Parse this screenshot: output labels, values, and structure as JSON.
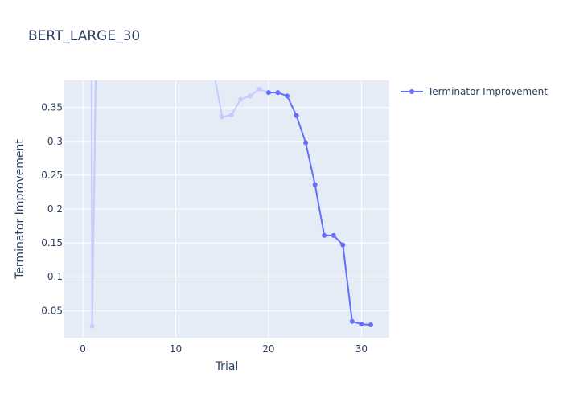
{
  "chart_data": {
    "type": "line",
    "title": "BERT_LARGE_30",
    "xlabel": "Trial",
    "ylabel": "Terminator Improvement",
    "xlim": [
      -2,
      33
    ],
    "ylim": [
      0.01,
      0.39
    ],
    "x_ticks": [
      0,
      10,
      20,
      30
    ],
    "y_ticks": [
      0.05,
      0.1,
      0.15,
      0.2,
      0.25,
      0.3,
      0.35
    ],
    "x_tick_labels": [
      "0",
      "10",
      "20",
      "30"
    ],
    "y_tick_labels": [
      "0.05",
      "0.1",
      "0.15",
      "0.2",
      "0.25",
      "0.3",
      "0.35"
    ],
    "grid": true,
    "legend_position": "top-right",
    "series": [
      {
        "name": "Terminator Improvement",
        "color": "#636efa",
        "faded_color": "#c7cafd",
        "points_faded": [
          {
            "x": 0.9,
            "y": 0.6
          },
          {
            "x": 1,
            "y": 0.027
          },
          {
            "x": 1.6,
            "y": 0.6
          },
          {
            "x": 14,
            "y": 0.41
          },
          {
            "x": 15,
            "y": 0.336
          },
          {
            "x": 16,
            "y": 0.339
          },
          {
            "x": 17,
            "y": 0.362
          },
          {
            "x": 18,
            "y": 0.367
          },
          {
            "x": 19,
            "y": 0.377
          },
          {
            "x": 20,
            "y": 0.372
          }
        ],
        "points": [
          {
            "x": 20,
            "y": 0.372
          },
          {
            "x": 21,
            "y": 0.372
          },
          {
            "x": 22,
            "y": 0.367
          },
          {
            "x": 23,
            "y": 0.338
          },
          {
            "x": 24,
            "y": 0.298
          },
          {
            "x": 25,
            "y": 0.236
          },
          {
            "x": 26,
            "y": 0.161
          },
          {
            "x": 27,
            "y": 0.161
          },
          {
            "x": 28,
            "y": 0.147
          },
          {
            "x": 29,
            "y": 0.034
          },
          {
            "x": 30,
            "y": 0.03
          },
          {
            "x": 31,
            "y": 0.029
          }
        ]
      }
    ]
  }
}
